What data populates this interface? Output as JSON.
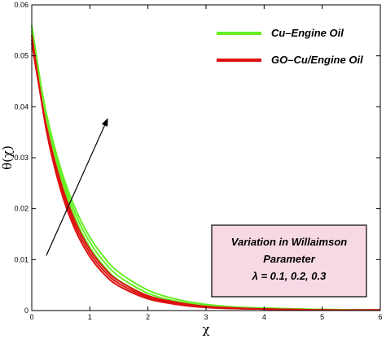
{
  "chart_data": {
    "type": "line",
    "xlabel": "χ",
    "ylabel": "θ(χ)",
    "xlim": [
      0,
      6
    ],
    "ylim": [
      0,
      0.06
    ],
    "xticks": [
      "0",
      "1",
      "2",
      "3",
      "4",
      "5",
      "6"
    ],
    "yticks": [
      "0",
      "0.01",
      "0.02",
      "0.03",
      "0.04",
      "0.05",
      "0.06"
    ],
    "grid": false,
    "legend_position": "top-right",
    "series": [
      {
        "name": "Cu–Engine Oil",
        "color": "#66ee22",
        "curves": [
          {
            "x": [
              0,
              0.25,
              0.5,
              0.75,
              1,
              1.25,
              1.5,
              2,
              2.5,
              3,
              3.5,
              4,
              5,
              6
            ],
            "y": [
              0.056,
              0.038,
              0.0262,
              0.018,
              0.0124,
              0.0086,
              0.0059,
              0.0029,
              0.0015,
              0.0008,
              0.0005,
              0.0003,
              0.0002,
              0.0001
            ]
          },
          {
            "x": [
              0,
              0.25,
              0.5,
              0.75,
              1,
              1.25,
              1.5,
              2,
              2.5,
              3,
              3.5,
              4,
              5,
              6
            ],
            "y": [
              0.055,
              0.0384,
              0.027,
              0.019,
              0.0134,
              0.0095,
              0.0067,
              0.0034,
              0.0018,
              0.001,
              0.0006,
              0.0004,
              0.0002,
              0.0001
            ]
          },
          {
            "x": [
              0,
              0.25,
              0.5,
              0.75,
              1,
              1.25,
              1.5,
              2,
              2.5,
              3,
              3.5,
              4,
              5,
              6
            ],
            "y": [
              0.0542,
              0.0388,
              0.0278,
              0.02,
              0.0144,
              0.0104,
              0.0075,
              0.004,
              0.0022,
              0.0012,
              0.0007,
              0.0005,
              0.0002,
              0.0001
            ]
          }
        ]
      },
      {
        "name": "GO–Cu/Engine Oil",
        "color": "#dd1111",
        "curves": [
          {
            "x": [
              0,
              0.25,
              0.5,
              0.75,
              1,
              1.25,
              1.5,
              2,
              2.5,
              3,
              3.5,
              4,
              5,
              6
            ],
            "y": [
              0.054,
              0.0355,
              0.0236,
              0.0158,
              0.0106,
              0.0071,
              0.0048,
              0.0023,
              0.0012,
              0.0006,
              0.0004,
              0.0003,
              0.0001,
              0.0001
            ]
          },
          {
            "x": [
              0,
              0.25,
              0.5,
              0.75,
              1,
              1.25,
              1.5,
              2,
              2.5,
              3,
              3.5,
              4,
              5,
              6
            ],
            "y": [
              0.0532,
              0.0359,
              0.0244,
              0.0166,
              0.0113,
              0.0077,
              0.0053,
              0.0026,
              0.0014,
              0.0007,
              0.0004,
              0.0003,
              0.0001,
              0.0001
            ]
          },
          {
            "x": [
              0,
              0.25,
              0.5,
              0.75,
              1,
              1.25,
              1.5,
              2,
              2.5,
              3,
              3.5,
              4,
              5,
              6
            ],
            "y": [
              0.0525,
              0.0363,
              0.0251,
              0.0174,
              0.012,
              0.0083,
              0.0058,
              0.0029,
              0.0016,
              0.0008,
              0.0005,
              0.0003,
              0.0001,
              0.0001
            ]
          }
        ]
      }
    ],
    "arrow": {
      "from": [
        0.25,
        0.0108
      ],
      "to": [
        1.3,
        0.0375
      ]
    },
    "annotation": {
      "lines": [
        "Variation in Willaimson",
        "Parameter",
        "λ = 0.1, 0.2, 0.3"
      ],
      "fill": "#f7d9e6"
    }
  }
}
